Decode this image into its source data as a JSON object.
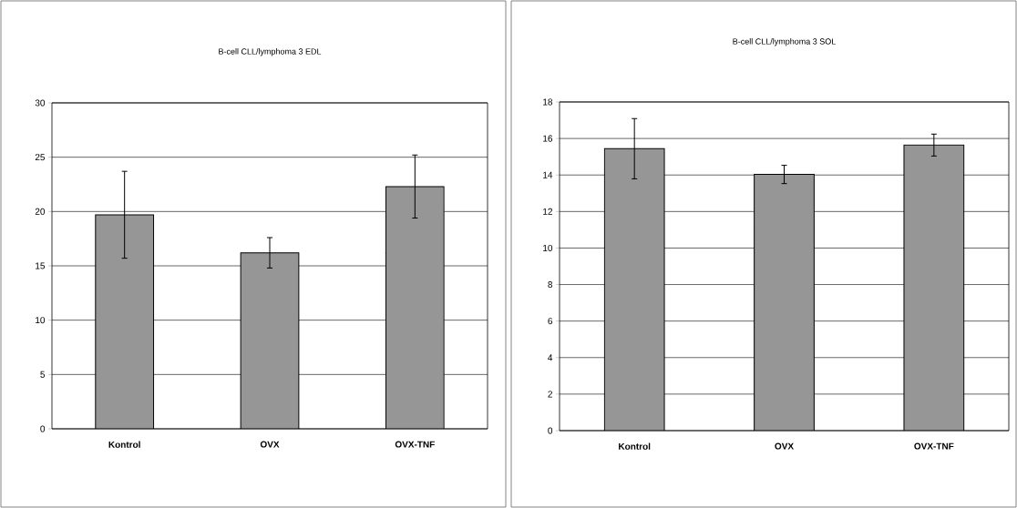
{
  "chart_data": [
    {
      "type": "bar",
      "title": "B-cell CLL/lymphoma 3 EDL",
      "categories": [
        "Kontrol",
        "OVX",
        "OVX-TNF"
      ],
      "values": [
        19.7,
        16.2,
        22.3
      ],
      "errors": [
        4.0,
        1.4,
        2.9
      ],
      "color": "#969696",
      "ylim": [
        0,
        30
      ],
      "yticks": [
        0,
        5,
        10,
        15,
        20,
        25,
        30
      ],
      "grid": "y"
    },
    {
      "type": "bar",
      "title": "B-cell CLL/lymphoma 3 SOL",
      "categories": [
        "Kontrol",
        "OVX",
        "OVX-TNF"
      ],
      "values": [
        15.44,
        14.03,
        15.64
      ],
      "errors": [
        1.65,
        0.5,
        0.6
      ],
      "color": "#969696",
      "ylim": [
        0,
        18
      ],
      "yticks": [
        0,
        2,
        4,
        6,
        8,
        10,
        12,
        14,
        16,
        18
      ],
      "grid": "y"
    }
  ]
}
